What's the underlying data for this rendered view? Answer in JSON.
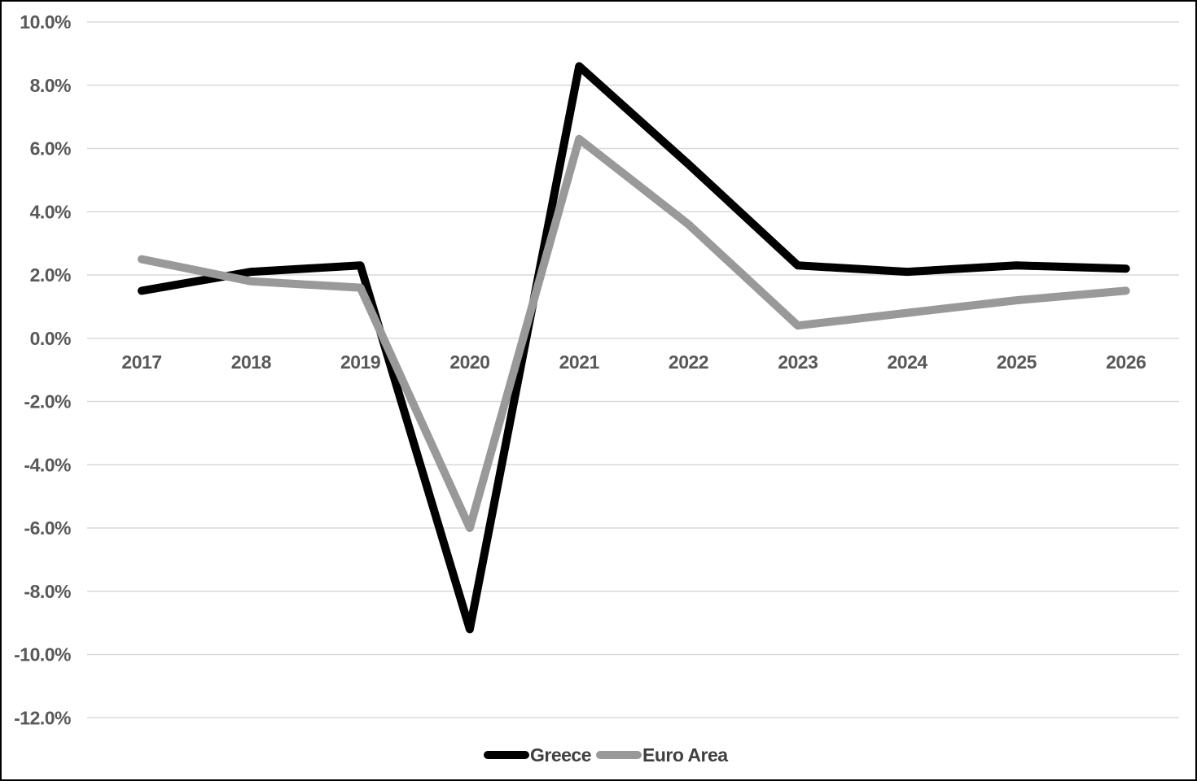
{
  "chart_data": {
    "type": "line",
    "categories": [
      "2017",
      "2018",
      "2019",
      "2020",
      "2021",
      "2022",
      "2023",
      "2024",
      "2025",
      "2026"
    ],
    "series": [
      {
        "name": "Greece",
        "color": "#000000",
        "values": [
          1.5,
          2.1,
          2.3,
          -9.2,
          8.6,
          5.5,
          2.3,
          2.1,
          2.3,
          2.2
        ]
      },
      {
        "name": "Euro Area",
        "color": "#999999",
        "values": [
          2.5,
          1.8,
          1.6,
          -6.0,
          6.3,
          3.6,
          0.4,
          0.8,
          1.2,
          1.5
        ]
      }
    ],
    "title": "",
    "xlabel": "",
    "ylabel": "",
    "ylim": [
      -12,
      10
    ],
    "ytick_step": 2,
    "y_tick_labels": [
      "10.0%",
      "8.0%",
      "6.0%",
      "4.0%",
      "2.0%",
      "0.0%",
      "-2.0%",
      "-4.0%",
      "-6.0%",
      "-8.0%",
      "-10.0%",
      "-12.0%"
    ],
    "grid": "horizontal",
    "legend_position": "bottom-center"
  },
  "style_colors": {
    "background": "#FFFFFF",
    "border": "#000000",
    "gridline": "#D9D9D9",
    "axis_text": "#595959",
    "legend_text": "#404040",
    "greece_line": "#000000",
    "euro_area_line": "#999999"
  }
}
